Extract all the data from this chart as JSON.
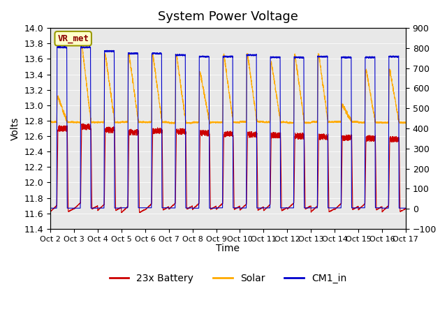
{
  "title": "System Power Voltage",
  "ylabel_left": "Volts",
  "xlabel": "Time",
  "ylim_left": [
    11.4,
    14.0
  ],
  "ylim_right": [
    -100,
    900
  ],
  "yticks_left": [
    11.4,
    11.6,
    11.8,
    12.0,
    12.2,
    12.4,
    12.6,
    12.8,
    13.0,
    13.2,
    13.4,
    13.6,
    13.8,
    14.0
  ],
  "yticks_right": [
    -100,
    0,
    100,
    200,
    300,
    400,
    500,
    600,
    700,
    800,
    900
  ],
  "xtick_labels": [
    "Oct 2",
    "Oct 3",
    "Oct 4",
    "Oct 5",
    "Oct 6",
    "Oct 7",
    "Oct 8",
    "Oct 9",
    "Oct 10",
    "Oct 11",
    "Oct 12",
    "Oct 13",
    "Oct 14",
    "Oct 15",
    "Oct 16",
    "Oct 17"
  ],
  "legend_labels": [
    "23x Battery",
    "Solar",
    "CM1_in"
  ],
  "legend_colors": [
    "#cc0000",
    "#ffaa00",
    "#0000cc"
  ],
  "background_color": "#ffffff",
  "plot_bg_color": "#e8e8e8",
  "vr_met_text": "VR_met",
  "vr_met_color": "#8b0000",
  "vr_met_bg": "#ffffcc",
  "title_fontsize": 13,
  "axis_label_fontsize": 10,
  "tick_fontsize": 9,
  "legend_fontsize": 10,
  "num_days": 15,
  "points_per_day": 200
}
